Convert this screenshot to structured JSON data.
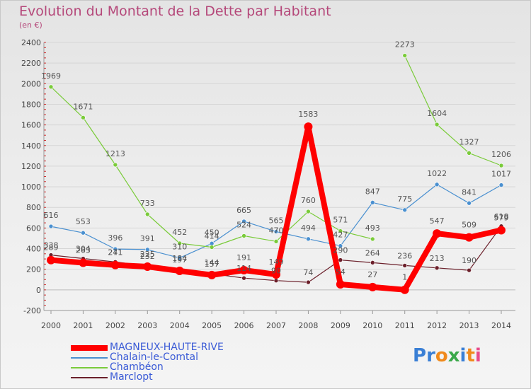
{
  "title": "Evolution du Montant de la Dette par Habitant",
  "subtitle": "(en €)",
  "brand": {
    "letters": [
      "P",
      "r",
      "o",
      "x",
      "i",
      "t",
      "i"
    ],
    "colors": [
      "#3a7fd5",
      "#3a7fd5",
      "#f08a1c",
      "#3aa84a",
      "#3a7fd5",
      "#f08a1c",
      "#e84a8a"
    ]
  },
  "chart_data": {
    "type": "line",
    "title": "Evolution du Montant de la Dette par Habitant",
    "subtitle": "(en €)",
    "xlabel": "",
    "ylabel": "",
    "ylim": [
      -200,
      2400
    ],
    "yticks": [
      -200,
      0,
      200,
      400,
      600,
      800,
      1000,
      1200,
      1400,
      1600,
      1800,
      2000,
      2200,
      2400
    ],
    "x": [
      "2000",
      "2001",
      "2002",
      "2003",
      "2004",
      "2005",
      "2006",
      "2007",
      "2008",
      "2009",
      "2010",
      "2011",
      "2012",
      "2013",
      "2014"
    ],
    "grid": "horizontal",
    "legend": "bottom-left",
    "series": [
      {
        "name": "MAGNEUX-HAUTE-RIVE",
        "color": "#ff0000",
        "width": 8,
        "marker": 6,
        "values": [
          289,
          263,
          241,
          225,
          184,
          144,
          191,
          149,
          1583,
          54,
          27,
          1,
          547,
          509,
          579
        ]
      },
      {
        "name": "Chalain-le-Comtal",
        "color": "#4a90d0",
        "width": 1.2,
        "marker": 3,
        "values": [
          616,
          553,
          396,
          391,
          310,
          450,
          665,
          565,
          494,
          427,
          847,
          775,
          1022,
          841,
          1017
        ]
      },
      {
        "name": "Chambéon",
        "color": "#7acb3a",
        "width": 1.2,
        "marker": 3,
        "values": [
          1969,
          1671,
          1213,
          733,
          452,
          414,
          524,
          470,
          760,
          571,
          493,
          null,
          1604,
          1327,
          1206
        ],
        "values_full": [
          1969,
          1671,
          1213,
          733,
          452,
          414,
          524,
          470,
          760,
          571,
          493,
          2273,
          1604,
          1327,
          1206
        ]
      },
      {
        "name": "Marclopt",
        "color": "#6b1f2a",
        "width": 1.2,
        "marker": 3,
        "values": [
          338,
          304,
          271,
          232,
          197,
          157,
          114,
          90,
          74,
          290,
          264,
          236,
          213,
          190,
          618
        ]
      }
    ],
    "labels": {
      "MAGNEUX-HAUTE-RIVE": [
        "289",
        "263",
        "241",
        "225",
        "184",
        "144",
        "191",
        "149",
        "1583",
        "54",
        "27",
        "1",
        "547",
        "509",
        "579"
      ],
      "Chalain-le-Comtal": [
        "616",
        "553",
        "396",
        "391",
        "310",
        "450",
        "665",
        "565",
        "494",
        "427",
        "847",
        "775",
        "1022",
        "841",
        "1017"
      ],
      "Chambéon": [
        "1969",
        "1671",
        "1213",
        "733",
        "452",
        "414",
        "524",
        "470",
        "760",
        "571",
        "493",
        "2273",
        "1604",
        "1327",
        "1206"
      ],
      "Marclopt": [
        "338",
        "304",
        "271",
        "232",
        "197",
        "157",
        "114",
        "90",
        "74",
        "290",
        "264",
        "236",
        "213",
        "190",
        "618"
      ]
    }
  }
}
